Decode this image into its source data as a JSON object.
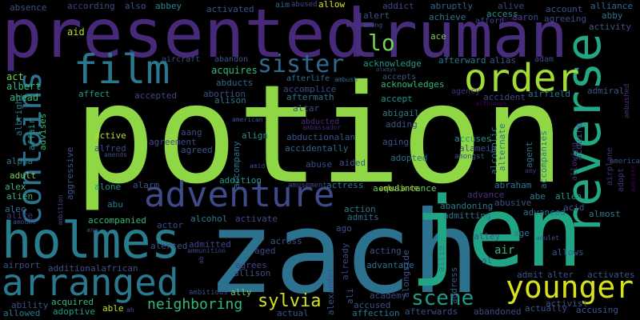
{
  "background": "#000000",
  "words": [
    {
      "text": "potion",
      "color": "#8fd744"
    },
    {
      "text": "zach",
      "color": "#2c728e"
    },
    {
      "text": "jen",
      "color": "#21a685"
    },
    {
      "text": "presented",
      "color": "#482878"
    },
    {
      "text": "truman",
      "color": "#472d7b"
    },
    {
      "text": "reverse",
      "color": "#22a884"
    },
    {
      "text": "film",
      "color": "#2a788e"
    },
    {
      "text": "order",
      "color": "#a2da37"
    },
    {
      "text": "holmes",
      "color": "#287c8e"
    },
    {
      "text": "adventure",
      "color": "#3e4a89"
    },
    {
      "text": "arranged",
      "color": "#2a788e"
    },
    {
      "text": "contains",
      "color": "#2c728e"
    },
    {
      "text": "younger",
      "color": "#d8e219"
    },
    {
      "text": "sister",
      "color": "#31688e"
    },
    {
      "text": "scene",
      "color": "#1f9a8a"
    },
    {
      "text": "sylvia",
      "color": "#d2e21b"
    },
    {
      "text": "neighboring",
      "color": "#35b779"
    },
    {
      "text": "lo",
      "color": "#75d054"
    },
    {
      "text": "absence",
      "color": "#3b528b"
    },
    {
      "text": "according",
      "color": "#404688"
    },
    {
      "text": "also",
      "color": "#3b528b"
    },
    {
      "text": "abbey",
      "color": "#23898e"
    },
    {
      "text": "activated",
      "color": "#3b528b"
    },
    {
      "text": "aim",
      "color": "#31688e"
    },
    {
      "text": "abused",
      "color": "#3e4a89"
    },
    {
      "text": "allow",
      "color": "#dde318"
    },
    {
      "text": "addict",
      "color": "#404688"
    },
    {
      "text": "abruptly",
      "color": "#31688e"
    },
    {
      "text": "alive",
      "color": "#404688"
    },
    {
      "text": "account",
      "color": "#3b528b"
    },
    {
      "text": "alliance",
      "color": "#31688e"
    },
    {
      "text": "aid",
      "color": "#b5de2b"
    },
    {
      "text": "alert",
      "color": "#3b528b"
    },
    {
      "text": "achieve",
      "color": "#2a788e"
    },
    {
      "text": "access",
      "color": "#21918c"
    },
    {
      "text": "aaron",
      "color": "#3b528b"
    },
    {
      "text": "agreeing",
      "color": "#3e4a89"
    },
    {
      "text": "abby",
      "color": "#2c728e"
    },
    {
      "text": "activity",
      "color": "#3b528b"
    },
    {
      "text": "ace",
      "color": "#7ad151"
    },
    {
      "text": "afford",
      "color": "#404688"
    },
    {
      "text": "amnesia",
      "color": "#440154"
    },
    {
      "text": "among",
      "color": "#3b528b"
    },
    {
      "text": "aircraft",
      "color": "#3e4a89"
    },
    {
      "text": "abandon",
      "color": "#3b528b"
    },
    {
      "text": "acquires",
      "color": "#35b779"
    },
    {
      "text": "abducts",
      "color": "#31688e"
    },
    {
      "text": "afterlife",
      "color": "#2c728e"
    },
    {
      "text": "acknowledge",
      "color": "#1f9a8a"
    },
    {
      "text": "accepts",
      "color": "#3b528b"
    },
    {
      "text": "acknowledges",
      "color": "#35b779"
    },
    {
      "text": "afterward",
      "color": "#2a788e"
    },
    {
      "text": "alias",
      "color": "#3b528b"
    },
    {
      "text": "adam",
      "color": "#3e4a89"
    },
    {
      "text": "admiral",
      "color": "#3b528b"
    },
    {
      "text": "ambush",
      "color": "#31688e"
    },
    {
      "text": "always",
      "color": "#404688"
    },
    {
      "text": "ambushed",
      "color": "#46327e"
    },
    {
      "text": "act",
      "color": "#7ad151"
    },
    {
      "text": "albert",
      "color": "#35b779"
    },
    {
      "text": "ahead",
      "color": "#35b779"
    },
    {
      "text": "albright",
      "color": "#2a788e"
    },
    {
      "text": "affect",
      "color": "#1f9a8a"
    },
    {
      "text": "accepted",
      "color": "#404688"
    },
    {
      "text": "abortion",
      "color": "#3b528b"
    },
    {
      "text": "alison",
      "color": "#2c728e"
    },
    {
      "text": "accomplice",
      "color": "#3e4a89"
    },
    {
      "text": "aftermath",
      "color": "#2c728e"
    },
    {
      "text": "accept",
      "color": "#21918c"
    },
    {
      "text": "agency",
      "color": "#472d7b"
    },
    {
      "text": "accident",
      "color": "#3e4a89"
    },
    {
      "text": "airfield",
      "color": "#2a788e"
    },
    {
      "text": "although",
      "color": "#440154"
    },
    {
      "text": "acquire",
      "color": "#3b528b"
    },
    {
      "text": "advises",
      "color": "#35b779"
    },
    {
      "text": "affair",
      "color": "#1f9a8a"
    },
    {
      "text": "altar",
      "color": "#3e4a89"
    },
    {
      "text": "abigail",
      "color": "#2a788e"
    },
    {
      "text": "align",
      "color": "#21918c"
    },
    {
      "text": "adding",
      "color": "#3b528b"
    },
    {
      "text": "american",
      "color": "#3b528b"
    },
    {
      "text": "abducted",
      "color": "#472d7b"
    },
    {
      "text": "ambassador",
      "color": "#482878"
    },
    {
      "text": "abductionalan",
      "color": "#3b528b"
    },
    {
      "text": "aging",
      "color": "#3b528b"
    },
    {
      "text": "accuses",
      "color": "#21918c"
    },
    {
      "text": "alamein",
      "color": "#3e4a89"
    },
    {
      "text": "alcoholic",
      "color": "#2a788e"
    },
    {
      "text": "alternate",
      "color": "#2c728e"
    },
    {
      "text": "accompanies",
      "color": "#2a788e"
    },
    {
      "text": "agent",
      "color": "#2c728e"
    },
    {
      "text": "allowing",
      "color": "#472d7b"
    },
    {
      "text": "airplane",
      "color": "#46327e"
    },
    {
      "text": "america",
      "color": "#3b528b"
    },
    {
      "text": "adopt",
      "color": "#46327e"
    },
    {
      "text": "ambrose",
      "color": "#440154"
    },
    {
      "text": "alpha",
      "color": "#2a788e"
    },
    {
      "text": "aang",
      "color": "#3e4a89"
    },
    {
      "text": "active",
      "color": "#b5de2b"
    },
    {
      "text": "agreement",
      "color": "#3e4a89"
    },
    {
      "text": "agreed",
      "color": "#3b528b"
    },
    {
      "text": "alfred",
      "color": "#3e4a89"
    },
    {
      "text": "amends",
      "color": "#3e4a89"
    },
    {
      "text": "accompany",
      "color": "#2c728e"
    },
    {
      "text": "accidentally",
      "color": "#31688e"
    },
    {
      "text": "abuse",
      "color": "#3e4a89"
    },
    {
      "text": "aided",
      "color": "#3b528b"
    },
    {
      "text": "adopted",
      "color": "#2c728e"
    },
    {
      "text": "amongst",
      "color": "#3b528b"
    },
    {
      "text": "amy",
      "color": "#46327e"
    },
    {
      "text": "aggressive",
      "color": "#3b528b"
    },
    {
      "text": "adult",
      "color": "#7ad151"
    },
    {
      "text": "amid",
      "color": "#3e4a89"
    },
    {
      "text": "alex",
      "color": "#35b779"
    },
    {
      "text": "alone",
      "color": "#21918c"
    },
    {
      "text": "alarm",
      "color": "#3b528b"
    },
    {
      "text": "addition",
      "color": "#1f9a8a"
    },
    {
      "text": "amusement",
      "color": "#3e4a89"
    },
    {
      "text": "ambulance",
      "color": "#dde318"
    },
    {
      "text": "actress",
      "color": "#2a788e"
    },
    {
      "text": "acquaintance",
      "color": "#6ccd5a"
    },
    {
      "text": "abraham",
      "color": "#2a788e"
    },
    {
      "text": "advance",
      "color": "#46327e"
    },
    {
      "text": "abe",
      "color": "#2a788e"
    },
    {
      "text": "allen",
      "color": "#1f9a8a"
    },
    {
      "text": "alien",
      "color": "#35b779"
    },
    {
      "text": "abu",
      "color": "#2a788e"
    },
    {
      "text": "abandoning",
      "color": "#2a788e"
    },
    {
      "text": "abusive",
      "color": "#3b528b"
    },
    {
      "text": "alec",
      "color": "#2c728e"
    },
    {
      "text": "alice",
      "color": "#46327e"
    },
    {
      "text": "ambition",
      "color": "#404688"
    },
    {
      "text": "alcohol",
      "color": "#2a788e"
    },
    {
      "text": "activate",
      "color": "#3e4a89"
    },
    {
      "text": "accompanied",
      "color": "#35b779"
    },
    {
      "text": "action",
      "color": "#2a788e"
    },
    {
      "text": "admits",
      "color": "#2c728e"
    },
    {
      "text": "admitting",
      "color": "#2a788e"
    },
    {
      "text": "advanced",
      "color": "#2c728e"
    },
    {
      "text": "acid",
      "color": "#3b528b"
    },
    {
      "text": "almost",
      "color": "#2a788e"
    },
    {
      "text": "amount",
      "color": "#3b528b"
    },
    {
      "text": "actor",
      "color": "#3e4a89"
    },
    {
      "text": "ana",
      "color": "#3e4a89"
    },
    {
      "text": "ago",
      "color": "#3b528b"
    },
    {
      "text": "across",
      "color": "#3b528b"
    },
    {
      "text": "alley",
      "color": "#3b528b"
    },
    {
      "text": "age",
      "color": "#2a788e"
    },
    {
      "text": "amulet",
      "color": "#3b528b"
    },
    {
      "text": "admitted",
      "color": "#404688"
    },
    {
      "text": "alerted",
      "color": "#3b528b"
    },
    {
      "text": "ammunition",
      "color": "#404688"
    },
    {
      "text": "airport",
      "color": "#3b528b"
    },
    {
      "text": "additionalafrican",
      "color": "#3b528b"
    },
    {
      "text": "ab",
      "color": "#404688"
    },
    {
      "text": "aged",
      "color": "#3e4a89"
    },
    {
      "text": "agrees",
      "color": "#404688"
    },
    {
      "text": "allison",
      "color": "#3b528b"
    },
    {
      "text": "already",
      "color": "#404688"
    },
    {
      "text": "acting",
      "color": "#3b528b"
    },
    {
      "text": "advantage",
      "color": "#2c728e"
    },
    {
      "text": "alongside",
      "color": "#3b528b"
    },
    {
      "text": "allie",
      "color": "#2a788e"
    },
    {
      "text": "air",
      "color": "#35b779"
    },
    {
      "text": "allows",
      "color": "#3b528b"
    },
    {
      "text": "al",
      "color": "#3b528b"
    },
    {
      "text": "admit",
      "color": "#3b528b"
    },
    {
      "text": "alter",
      "color": "#3b528b"
    },
    {
      "text": "activates",
      "color": "#3b528b"
    },
    {
      "text": "ally",
      "color": "#6ccd5a"
    },
    {
      "text": "alexander",
      "color": "#3b528b"
    },
    {
      "text": "ali",
      "color": "#3b528b"
    },
    {
      "text": "address",
      "color": "#3b528b"
    },
    {
      "text": "academy",
      "color": "#3e4a89"
    },
    {
      "text": "ability",
      "color": "#3b528b"
    },
    {
      "text": "acquired",
      "color": "#35b779"
    },
    {
      "text": "ambitious",
      "color": "#3e4a89"
    },
    {
      "text": "allowed",
      "color": "#2a788e"
    },
    {
      "text": "adoptive",
      "color": "#1f9a8a"
    },
    {
      "text": "able",
      "color": "#bddf26"
    },
    {
      "text": "ah",
      "color": "#3b528b"
    },
    {
      "text": "actual",
      "color": "#3b528b"
    },
    {
      "text": "accused",
      "color": "#3b528b"
    },
    {
      "text": "affection",
      "color": "#2a788e"
    },
    {
      "text": "afterwards",
      "color": "#3b528b"
    },
    {
      "text": "abandoned",
      "color": "#3e4a89"
    },
    {
      "text": "actually",
      "color": "#3b528b"
    },
    {
      "text": "activist",
      "color": "#3b528b"
    },
    {
      "text": "accusing",
      "color": "#3b528b"
    }
  ]
}
